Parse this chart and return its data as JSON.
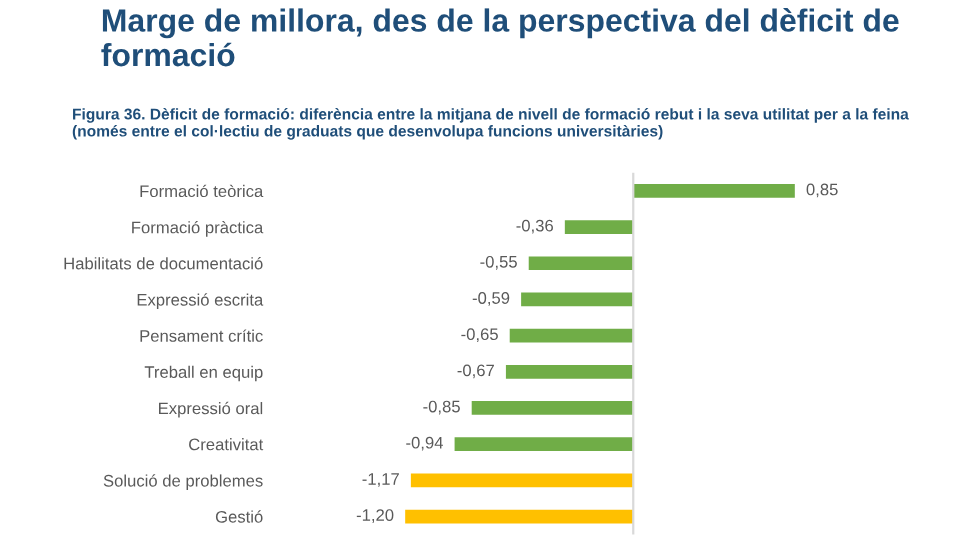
{
  "chart_data": {
    "type": "bar",
    "orientation": "horizontal",
    "title": "Marge de millora, des de la perspectiva del dèficit de formació",
    "subtitle": "Figura 36. Dèficit de formació: diferència entre la mitjana de nivell de formació rebut i la seva utilitat per a la feina (només entre el col·lectiu de graduats que desenvolupa funcions universitàries)",
    "categories": [
      "Formació teòrica",
      "Formació pràctica",
      "Habilitats de documentació",
      "Expressió escrita",
      "Pensament crític",
      "Treball en equip",
      "Expressió oral",
      "Creativitat",
      "Solució de problemes",
      "Gestió"
    ],
    "values": [
      0.85,
      -0.36,
      -0.55,
      -0.59,
      -0.65,
      -0.67,
      -0.85,
      -0.94,
      -1.17,
      -1.2
    ],
    "value_labels": [
      "0,85",
      "-0,36",
      "-0,55",
      "-0,59",
      "-0,65",
      "-0,67",
      "-0,85",
      "-0,94",
      "-1,17",
      "-1,20"
    ],
    "colors": [
      "#70ad47",
      "#70ad47",
      "#70ad47",
      "#70ad47",
      "#70ad47",
      "#70ad47",
      "#70ad47",
      "#70ad47",
      "#ffc000",
      "#ffc000"
    ],
    "grid": false,
    "legend": false
  }
}
